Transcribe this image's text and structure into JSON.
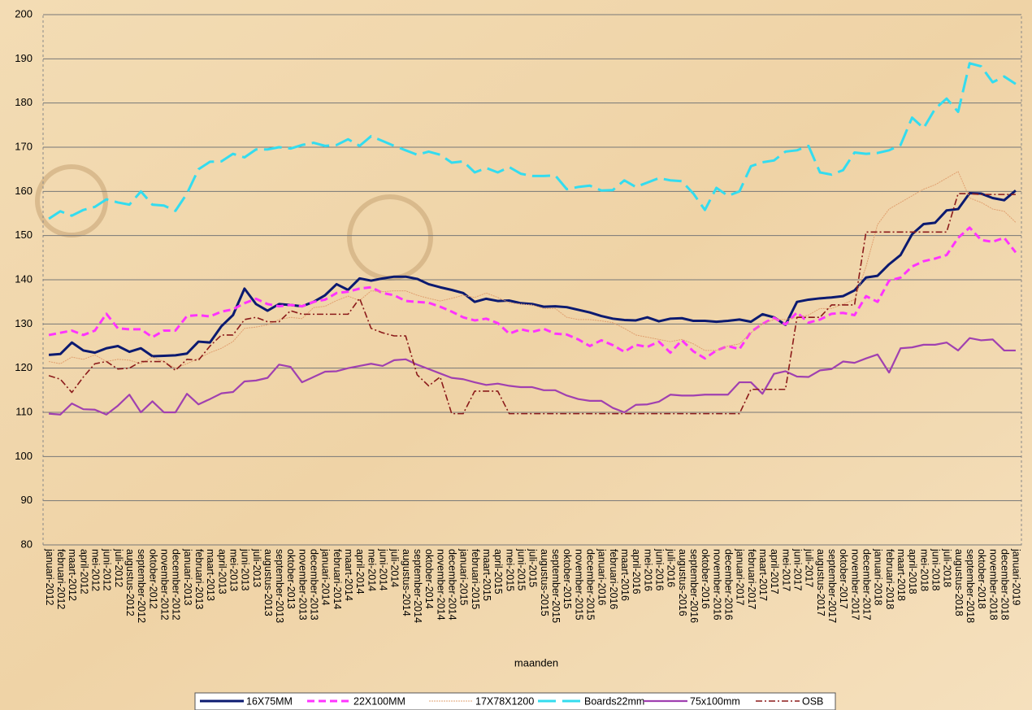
{
  "chart_data": {
    "type": "line",
    "x_label": "maanden",
    "categories": [
      "januari-2012",
      "februari-2012",
      "maart-2012",
      "april-2012",
      "mei-2012",
      "juni-2012",
      "juli-2012",
      "augustus-2012",
      "september-2012",
      "oktober-2012",
      "november-2012",
      "december-2012",
      "januari-2013",
      "februari-2013",
      "maart-2013",
      "april-2013",
      "mei-2013",
      "juni-2013",
      "juli-2013",
      "augustus-2013",
      "september-2013",
      "oktober-2013",
      "november-2013",
      "december-2013",
      "januari-2014",
      "februari-2014",
      "maart-2014",
      "april-2014",
      "mei-2014",
      "juni-2014",
      "juli-2014",
      "augustus-2014",
      "september-2014",
      "oktober-2014",
      "november-2014",
      "december-2014",
      "januari-2015",
      "februari-2015",
      "maart-2015",
      "april-2015",
      "mei-2015",
      "juni-2015",
      "juli-2015",
      "augustus-2015",
      "september-2015",
      "oktober-2015",
      "november-2015",
      "december-2015",
      "januari-2016",
      "februari-2016",
      "maart-2016",
      "april-2016",
      "mei-2016",
      "juni-2016",
      "juli-2016",
      "augustus-2016",
      "september-2016",
      "oktober-2016",
      "november-2016",
      "december-2016",
      "januari-2017",
      "februari-2017",
      "maart-2017",
      "april-2017",
      "mei-2017",
      "juni-2017",
      "juli-2017",
      "augustus-2017",
      "september-2017",
      "oktober-2017",
      "november-2017",
      "december-2017",
      "januari-2018",
      "februari-2018",
      "maart-2018",
      "april-2018",
      "mei-2018",
      "juni-2018",
      "juli-2018",
      "augustus-2018",
      "september-2018",
      "oktober-2018",
      "november-2018",
      "december-2018",
      "januari-2019"
    ],
    "series": [
      {
        "name": "16X75MM",
        "color": "#0b1a70",
        "values": [
          123,
          123.2,
          125.8,
          124,
          123.5,
          124.5,
          125,
          123.7,
          124.5,
          122.7,
          122.8,
          122.9,
          123.3,
          126,
          125.8,
          129.5,
          132,
          138,
          134.5,
          133,
          134.5,
          134.3,
          134,
          135,
          136.5,
          139,
          137.7,
          140.3,
          139.8,
          140.3,
          140.7,
          140.7,
          140.2,
          139,
          138.3,
          137.7,
          137,
          135,
          135.7,
          135.2,
          135.3,
          134.7,
          134.5,
          133.9,
          134,
          133.8,
          133.2,
          132.6,
          131.8,
          131.2,
          130.9,
          130.8,
          131.5,
          130.6,
          131.2,
          131.3,
          130.7,
          130.7,
          130.5,
          130.7,
          131,
          130.5,
          132.2,
          131.5,
          129.8,
          135,
          135.5,
          135.8,
          136,
          136.3,
          137.6,
          140.5,
          140.9,
          143.5,
          145.6,
          150.3,
          152.6,
          152.9,
          155.7,
          156,
          159.6,
          159.5,
          158.5,
          158,
          160.2
        ]
      },
      {
        "name": "22X100MM",
        "color": "#ff33ff",
        "values": [
          127.5,
          128,
          128.5,
          127.5,
          128.5,
          132.3,
          129,
          128.8,
          128.8,
          127,
          128.5,
          128.5,
          131.8,
          132,
          131.7,
          132.8,
          133.3,
          134.7,
          135.7,
          134.5,
          134,
          134.3,
          134,
          135,
          135.5,
          137,
          137.3,
          138,
          138.3,
          137,
          136.5,
          135.2,
          135,
          134.8,
          133.9,
          132.8,
          131.5,
          130.8,
          131.2,
          130.2,
          127.8,
          128.8,
          128.2,
          128.9,
          127.8,
          127.6,
          126.5,
          125,
          126.3,
          125.2,
          123.7,
          125.3,
          124.8,
          126,
          123.5,
          126.3,
          123.8,
          122.2,
          124,
          125,
          124.3,
          128.2,
          130,
          131.4,
          129.9,
          132.6,
          130.3,
          131,
          132.3,
          132.5,
          132,
          136.3,
          135,
          139.8,
          140.5,
          143,
          144.2,
          144.8,
          145.6,
          149.5,
          151.8,
          149,
          148.6,
          149.5,
          146.2
        ]
      },
      {
        "name": "17X78X1200",
        "color": "#e0a070",
        "values": [
          121.5,
          121,
          122.5,
          122,
          123,
          121.5,
          122,
          121.8,
          121,
          122.5,
          121.5,
          120,
          121,
          122.2,
          123.5,
          124.5,
          126,
          129,
          129.3,
          129.8,
          131,
          131.5,
          131.2,
          133.7,
          134,
          135.3,
          136.3,
          135.3,
          137.5,
          137.3,
          137.5,
          137.5,
          136.5,
          135.8,
          135.2,
          135.8,
          136.5,
          136,
          137,
          136,
          134.8,
          134.5,
          134.3,
          133.5,
          133.5,
          131.5,
          131,
          131,
          130.7,
          130.3,
          129,
          127.5,
          127,
          126.5,
          126,
          126.5,
          125.5,
          124,
          124,
          125,
          125.5,
          128,
          130,
          131,
          131,
          131.5,
          132,
          133.5,
          133.5,
          134.5,
          135.5,
          143,
          152.5,
          156,
          157.5,
          159,
          160.5,
          161.5,
          163,
          164.5,
          158.5,
          157.5,
          156,
          155.5,
          153
        ]
      },
      {
        "name": "Boards22mm",
        "color": "#33dcef",
        "values": [
          153.8,
          155.5,
          154.5,
          155.8,
          156.5,
          158.2,
          157.5,
          157,
          160,
          157,
          156.8,
          155.6,
          159.5,
          165,
          166.7,
          166.8,
          168.5,
          167.7,
          169.5,
          169.5,
          170,
          169.7,
          170.5,
          171,
          170.3,
          170.5,
          171.8,
          170.3,
          172.5,
          171.4,
          170.3,
          169.3,
          168.3,
          169,
          168.3,
          166.5,
          166.8,
          164.3,
          165.3,
          164.3,
          165.5,
          164,
          163.5,
          163.5,
          163.6,
          160.5,
          161,
          161.3,
          160.2,
          160.3,
          162.5,
          161,
          162,
          163,
          162.5,
          162.3,
          159.5,
          155.8,
          160.8,
          159,
          160,
          165.7,
          166.6,
          167,
          169,
          169.3,
          170.3,
          164.3,
          163.8,
          164.8,
          168.8,
          168.5,
          168.7,
          169.3,
          170.5,
          176.7,
          174.3,
          178.7,
          181,
          178,
          189,
          188.3,
          184.7,
          186,
          184.3
        ]
      },
      {
        "name": "75x100mm",
        "color": "#a040b0",
        "values": [
          109.7,
          109.5,
          112,
          110.7,
          110.6,
          109.5,
          111.5,
          114,
          110,
          112.5,
          110,
          110,
          114.2,
          111.8,
          113,
          114.3,
          114.6,
          117,
          117.2,
          117.8,
          120.8,
          120.3,
          116.8,
          118,
          119.2,
          119.3,
          120,
          120.5,
          121,
          120.5,
          121.8,
          122,
          120.8,
          119.8,
          118.8,
          117.8,
          117.5,
          116.8,
          116.2,
          116.5,
          116,
          115.7,
          115.7,
          115,
          115,
          113.8,
          113,
          112.6,
          112.6,
          111,
          110,
          111.7,
          111.8,
          112.4,
          114,
          113.8,
          113.8,
          114,
          114,
          114,
          116.8,
          116.8,
          114.2,
          118.7,
          119.3,
          118.1,
          118,
          119.5,
          119.8,
          121.5,
          121.2,
          122.2,
          123.1,
          119,
          124.5,
          124.7,
          125.3,
          125.3,
          125.8,
          124,
          126.8,
          126.3,
          126.5,
          124,
          124
        ]
      },
      {
        "name": "OSB",
        "color": "#8b1a1a",
        "values": [
          118.3,
          117.5,
          114.5,
          118,
          121,
          121.5,
          119.8,
          120,
          121.5,
          121.5,
          121.5,
          119.5,
          122,
          121.8,
          125,
          127.5,
          127.5,
          131,
          131.5,
          130.5,
          130.5,
          133,
          132.2,
          132.2,
          132.2,
          132.2,
          132.2,
          135.8,
          129,
          128,
          127.3,
          127.3,
          118.5,
          116,
          118,
          109.7,
          109.7,
          114.8,
          114.8,
          114.8,
          109.7,
          109.7,
          109.7,
          109.7,
          109.7,
          109.7,
          109.7,
          109.7,
          109.7,
          109.7,
          109.7,
          109.7,
          109.7,
          109.7,
          109.7,
          109.7,
          109.7,
          109.7,
          109.7,
          109.7,
          109.7,
          115.2,
          115.2,
          115.2,
          115.2,
          131.5,
          131.5,
          131.5,
          134.3,
          134.3,
          134.3,
          150.8,
          150.8,
          150.8,
          150.8,
          150.8,
          150.8,
          150.8,
          150.8,
          159.5,
          159.5,
          159.3,
          159.3,
          159.3,
          159.3
        ]
      }
    ],
    "ylim": [
      80,
      200
    ],
    "yticks": [
      80,
      90,
      100,
      110,
      120,
      130,
      140,
      150,
      160,
      170,
      180,
      190,
      200
    ],
    "grid": true
  }
}
